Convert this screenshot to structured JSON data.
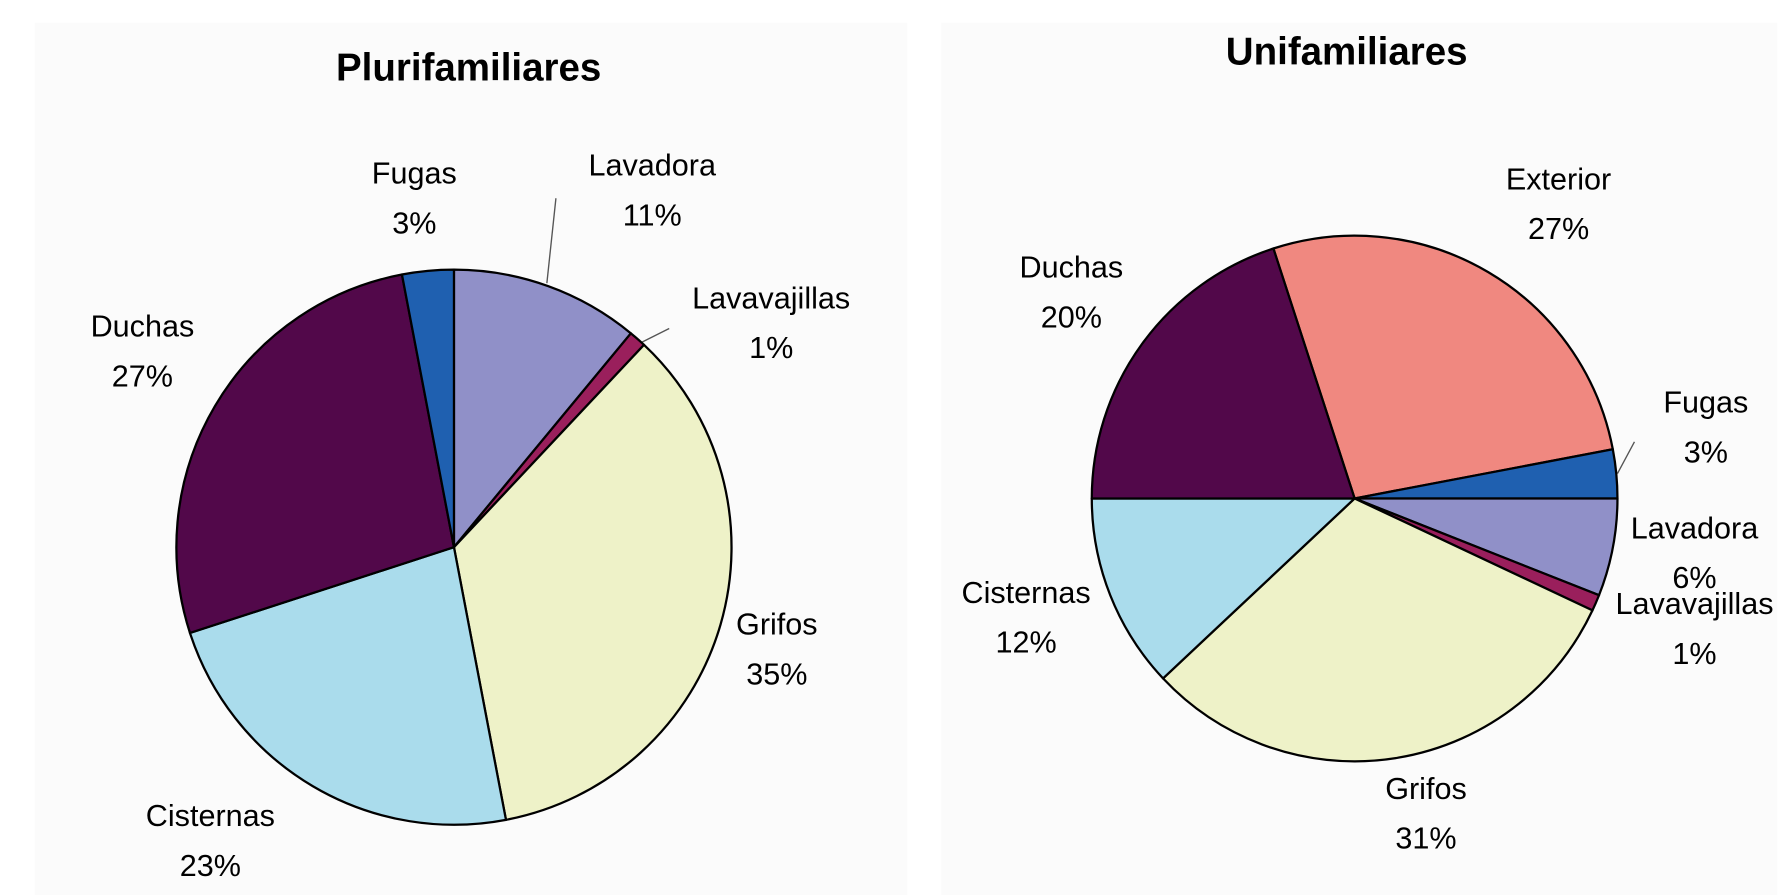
{
  "chart_data": [
    {
      "type": "pie",
      "title": "Plurifamiliares",
      "categories": [
        "Lavadora",
        "Lavavajillas",
        "Grifos",
        "Cisternas",
        "Duchas",
        "Fugas"
      ],
      "values": [
        11,
        1,
        35,
        23,
        27,
        3
      ],
      "value_labels": [
        "11%",
        "1%",
        "35%",
        "23%",
        "27%",
        "3%"
      ],
      "colors": [
        "#9090c8",
        "#9a1f5c",
        "#eef2c8",
        "#aadcec",
        "#52084a",
        "#1f60b0"
      ]
    },
    {
      "type": "pie",
      "title": "Unifamiliares",
      "categories": [
        "Exterior",
        "Fugas",
        "Lavadora",
        "Lavavajillas",
        "Grifos",
        "Cisternas",
        "Duchas"
      ],
      "values": [
        27,
        3,
        6,
        1,
        31,
        12,
        20
      ],
      "value_labels": [
        "27%",
        "3%",
        "6%",
        "1%",
        "31%",
        "12%",
        "20%"
      ],
      "colors": [
        "#f08880",
        "#1f60b0",
        "#9090c8",
        "#9a1f5c",
        "#eef2c8",
        "#aadcec",
        "#52084a"
      ]
    }
  ]
}
